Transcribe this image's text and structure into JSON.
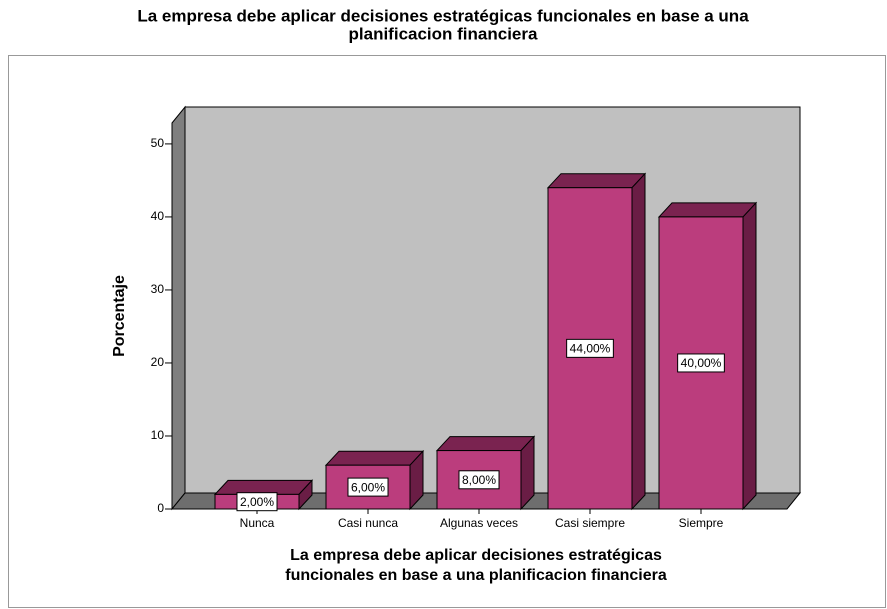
{
  "chart_data": {
    "type": "bar3d",
    "title": [
      "La empresa debe aplicar decisiones estratégicas funcionales en base a una",
      "planificacion financiera"
    ],
    "x_label": [
      "La empresa debe aplicar decisiones estratégicas",
      "funcionales en base a una planificacion financiera"
    ],
    "y_label": "Porcentaje",
    "categories": [
      "Nunca",
      "Casi nunca",
      "Algunas veces",
      "Casi siempre",
      "Siempre"
    ],
    "values": [
      2,
      6,
      8,
      44,
      40
    ],
    "value_labels": [
      "2,00%",
      "6,00%",
      "8,00%",
      "44,00%",
      "40,00%"
    ],
    "color": "#bb3d7d",
    "ylim": [
      0,
      53
    ],
    "yticks": [
      0,
      10,
      20,
      30,
      40,
      50
    ]
  }
}
